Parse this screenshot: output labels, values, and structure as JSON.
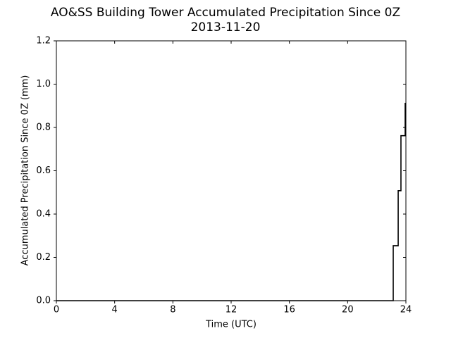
{
  "chart_data": {
    "type": "line",
    "title": "AO&SS Building Tower Accumulated Precipitation Since 0Z",
    "subtitle": "2013-11-20",
    "x_label": "Time (UTC)",
    "y_label": "Accumulated Precipitation Since 0Z (mm)",
    "series": [
      {
        "color": "#000000",
        "x": [
          0,
          23.13,
          23.13,
          23.47,
          23.47,
          23.66,
          23.66,
          23.95,
          23.95
        ],
        "values": [
          0,
          0,
          0.254,
          0.254,
          0.508,
          0.508,
          0.762,
          0.762,
          0.914
        ]
      }
    ],
    "xlim": [
      0,
      24
    ],
    "xticks": [
      0,
      4,
      8,
      12,
      16,
      20,
      24
    ],
    "ylim": [
      0,
      1.2
    ],
    "yticks": [
      {
        "value": 0,
        "label": "0.0"
      },
      0.2,
      0.4,
      0.6,
      0.8,
      {
        "value": 1,
        "label": "1.0"
      },
      1.2
    ]
  }
}
